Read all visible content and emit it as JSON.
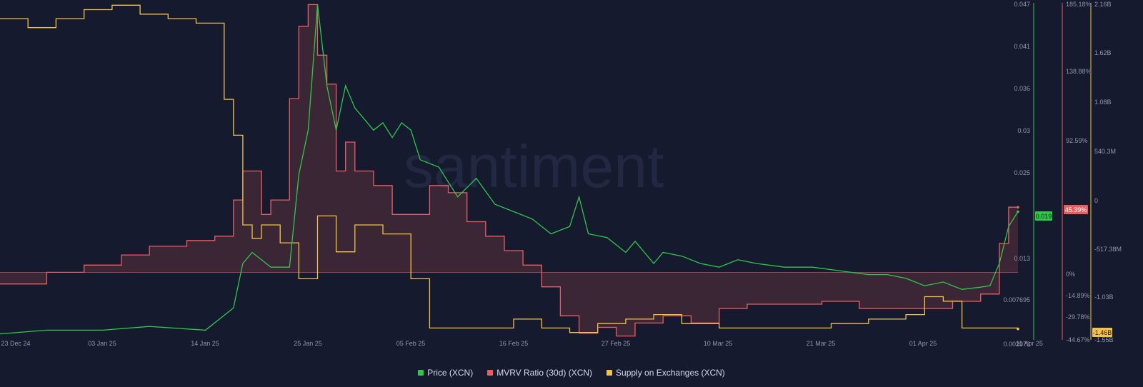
{
  "watermark": "santiment",
  "legend": [
    {
      "label": "Price (XCN)",
      "color": "#2ec84a"
    },
    {
      "label": "MVRV Ratio (30d) (XCN)",
      "color": "#e95f5f"
    },
    {
      "label": "Supply on Exchanges (XCN)",
      "color": "#f4c244"
    }
  ],
  "colors": {
    "price": "#2ec84a",
    "mvrv": "#e95f5f",
    "supply": "#f4c244",
    "background": "#151a2e"
  },
  "chart_data": {
    "type": "line",
    "title": "",
    "x_ticks": [
      "23 Dec 24",
      "03 Jan 25",
      "14 Jan 25",
      "25 Jan 25",
      "05 Feb 25",
      "16 Feb 25",
      "27 Feb 25",
      "10 Mar 25",
      "21 Mar 25",
      "01 Apr 25",
      "11 Apr 25"
    ],
    "x_range": [
      "2024-12-23",
      "2025-04-11"
    ],
    "axes": {
      "price": {
        "ticks": [
          "0.047",
          "0.041",
          "0.036",
          "0.03",
          "0.025",
          "0.019",
          "0.013",
          "0.007695",
          "0.002073"
        ],
        "range": [
          0.002073,
          0.047
        ],
        "current": "0.019"
      },
      "mvrv": {
        "ticks": [
          "185.18%",
          "138.88%",
          "92.59%",
          "45.39%",
          "0%",
          "-14.89%",
          "-29.78%",
          "-44.67%"
        ],
        "range": [
          -44.67,
          185.18
        ],
        "current": "45.39%"
      },
      "supply": {
        "ticks": [
          "2.16B",
          "1.62B",
          "1.08B",
          "540.3M",
          "0",
          "-517.38M",
          "-1.03B",
          "-1.46B",
          "-1.55B"
        ],
        "range": [
          -1.55,
          2.16
        ],
        "current": "-1.46B"
      }
    },
    "series": [
      {
        "name": "Price (XCN)",
        "axis": "price",
        "x": [
          "2024-12-23",
          "2024-12-28",
          "2025-01-03",
          "2025-01-08",
          "2025-01-14",
          "2025-01-17",
          "2025-01-18",
          "2025-01-19",
          "2025-01-20",
          "2025-01-21",
          "2025-01-23",
          "2025-01-24",
          "2025-01-25",
          "2025-01-26",
          "2025-01-27",
          "2025-01-28",
          "2025-01-29",
          "2025-01-30",
          "2025-02-01",
          "2025-02-02",
          "2025-02-03",
          "2025-02-04",
          "2025-02-05",
          "2025-02-06",
          "2025-02-08",
          "2025-02-10",
          "2025-02-12",
          "2025-02-14",
          "2025-02-16",
          "2025-02-18",
          "2025-02-20",
          "2025-02-22",
          "2025-02-23",
          "2025-02-24",
          "2025-02-26",
          "2025-02-28",
          "2025-03-01",
          "2025-03-03",
          "2025-03-04",
          "2025-03-06",
          "2025-03-08",
          "2025-03-10",
          "2025-03-12",
          "2025-03-14",
          "2025-03-17",
          "2025-03-20",
          "2025-03-23",
          "2025-03-26",
          "2025-03-28",
          "2025-03-30",
          "2025-04-01",
          "2025-04-03",
          "2025-04-05",
          "2025-04-07",
          "2025-04-08",
          "2025-04-09",
          "2025-04-10",
          "2025-04-11"
        ],
        "values": [
          0.0025,
          0.003,
          0.003,
          0.0035,
          0.003,
          0.006,
          0.012,
          0.0135,
          0.0125,
          0.0115,
          0.0115,
          0.024,
          0.03,
          0.047,
          0.036,
          0.03,
          0.036,
          0.033,
          0.03,
          0.031,
          0.029,
          0.031,
          0.03,
          0.026,
          0.025,
          0.021,
          0.0235,
          0.02,
          0.019,
          0.018,
          0.016,
          0.017,
          0.021,
          0.016,
          0.0155,
          0.0135,
          0.015,
          0.012,
          0.0135,
          0.013,
          0.012,
          0.0115,
          0.0125,
          0.012,
          0.0115,
          0.0115,
          0.011,
          0.0105,
          0.0105,
          0.01,
          0.009,
          0.0095,
          0.0085,
          0.0088,
          0.009,
          0.012,
          0.017,
          0.019
        ]
      },
      {
        "name": "MVRV Ratio (30d) (XCN)",
        "axis": "mvrv",
        "x": [
          "2024-12-23",
          "2024-12-28",
          "2025-01-01",
          "2025-01-05",
          "2025-01-08",
          "2025-01-12",
          "2025-01-15",
          "2025-01-17",
          "2025-01-18",
          "2025-01-20",
          "2025-01-21",
          "2025-01-23",
          "2025-01-24",
          "2025-01-25",
          "2025-01-26",
          "2025-01-27",
          "2025-01-28",
          "2025-01-29",
          "2025-01-30",
          "2025-02-01",
          "2025-02-03",
          "2025-02-05",
          "2025-02-07",
          "2025-02-09",
          "2025-02-11",
          "2025-02-13",
          "2025-02-15",
          "2025-02-17",
          "2025-02-19",
          "2025-02-21",
          "2025-02-23",
          "2025-02-25",
          "2025-02-27",
          "2025-03-01",
          "2025-03-04",
          "2025-03-07",
          "2025-03-10",
          "2025-03-13",
          "2025-03-17",
          "2025-03-21",
          "2025-03-25",
          "2025-03-29",
          "2025-04-01",
          "2025-04-04",
          "2025-04-07",
          "2025-04-08",
          "2025-04-09",
          "2025-04-10",
          "2025-04-11"
        ],
        "values": [
          -8,
          0,
          5,
          12,
          18,
          22,
          25,
          50,
          70,
          40,
          50,
          120,
          170,
          185,
          150,
          130,
          70,
          90,
          70,
          60,
          40,
          40,
          60,
          55,
          35,
          25,
          15,
          5,
          -10,
          -30,
          -42,
          -38,
          -44,
          -35,
          -30,
          -35,
          -25,
          -22,
          -22,
          -20,
          -25,
          -25,
          -25,
          -20,
          -15,
          -15,
          20,
          45,
          45
        ]
      },
      {
        "name": "Supply on Exchanges (XCN)",
        "axis": "supply",
        "x": [
          "2024-12-23",
          "2024-12-26",
          "2024-12-29",
          "2025-01-01",
          "2025-01-04",
          "2025-01-07",
          "2025-01-10",
          "2025-01-13",
          "2025-01-16",
          "2025-01-17",
          "2025-01-18",
          "2025-01-19",
          "2025-01-20",
          "2025-01-22",
          "2025-01-24",
          "2025-01-26",
          "2025-01-28",
          "2025-01-30",
          "2025-02-02",
          "2025-02-05",
          "2025-02-07",
          "2025-02-10",
          "2025-02-13",
          "2025-02-16",
          "2025-02-19",
          "2025-02-22",
          "2025-02-25",
          "2025-02-28",
          "2025-03-03",
          "2025-03-06",
          "2025-03-10",
          "2025-03-14",
          "2025-03-18",
          "2025-03-22",
          "2025-03-26",
          "2025-03-30",
          "2025-04-01",
          "2025-04-03",
          "2025-04-05",
          "2025-04-08",
          "2025-04-11"
        ],
        "values": [
          2.0,
          1.9,
          2.0,
          2.1,
          2.15,
          2.05,
          2.0,
          1.95,
          1.1,
          0.7,
          -0.3,
          -0.45,
          -0.3,
          -0.5,
          -0.9,
          -0.2,
          -0.6,
          -0.3,
          -0.4,
          -0.9,
          -1.45,
          -1.45,
          -1.45,
          -1.35,
          -1.45,
          -1.5,
          -1.4,
          -1.35,
          -1.3,
          -1.4,
          -1.45,
          -1.45,
          -1.45,
          -1.4,
          -1.35,
          -1.3,
          -1.1,
          -1.15,
          -1.45,
          -1.45,
          -1.46
        ]
      }
    ]
  }
}
